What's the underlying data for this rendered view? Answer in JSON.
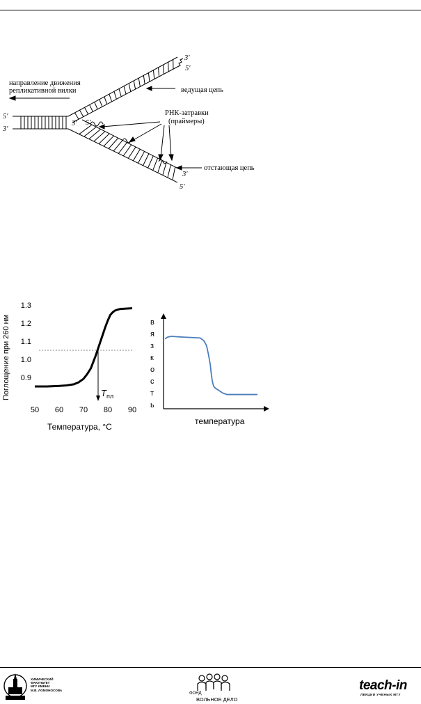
{
  "replication_fork": {
    "labels": {
      "direction": [
        "направление движения",
        "репликативной вилки"
      ],
      "leading": "ведущая цепь",
      "primers": [
        "РНК-затравки",
        "(праймеры)"
      ],
      "lagging": "отстающая цепь",
      "end_3_top": "3′",
      "end_5_top": "5′",
      "end_5_left": "5′",
      "end_3_left": "3′",
      "end_3_fork": "3′",
      "end_5_fork": "5′",
      "end_3_bottom": "3′",
      "end_5_bottom": "5′"
    }
  },
  "chart_data": [
    {
      "type": "line",
      "xlabel": "Температура, °C",
      "ylabel": "Поглощение при 260 нм",
      "xlim": [
        50,
        90
      ],
      "ylim": [
        0.8,
        1.3
      ],
      "xticks": [
        "50",
        "60",
        "70",
        "80",
        "90"
      ],
      "yticks": [
        "1.3",
        "1.2",
        "1.1",
        "1.0",
        "0.9"
      ],
      "x": [
        50,
        55,
        60,
        63,
        66,
        68,
        70,
        71.5,
        73,
        74,
        75,
        76,
        77,
        78,
        79,
        80,
        81,
        82,
        83,
        85,
        87,
        90
      ],
      "y": [
        0.85,
        0.85,
        0.853,
        0.856,
        0.862,
        0.873,
        0.892,
        0.918,
        0.95,
        0.985,
        1.02,
        1.06,
        1.1,
        1.14,
        1.18,
        1.215,
        1.245,
        1.26,
        1.27,
        1.278,
        1.28,
        1.282
      ],
      "reference_line_y": 1.05,
      "marker_x": 76,
      "marker_label": "T",
      "marker_sub": "пл",
      "grid": false
    },
    {
      "type": "line",
      "xlabel": "температура",
      "ylabel_letters": [
        "в",
        "я",
        "з",
        "к",
        "о",
        "с",
        "т",
        "ь"
      ],
      "line_color": "#4a7ebb",
      "x": [
        0,
        3,
        7,
        12,
        20,
        30,
        38,
        42,
        45,
        47,
        49,
        50,
        51,
        52,
        53,
        55,
        58,
        62,
        67,
        75,
        85,
        100
      ],
      "y": [
        0.8,
        0.82,
        0.83,
        0.825,
        0.82,
        0.815,
        0.81,
        0.78,
        0.72,
        0.62,
        0.5,
        0.4,
        0.32,
        0.27,
        0.24,
        0.22,
        0.2,
        0.17,
        0.15,
        0.15,
        0.15,
        0.15
      ]
    }
  ],
  "footer": {
    "left_caption": [
      "ХИМИЧЕСКИЙ",
      "ФАКУЛЬТЕТ",
      "МГУ ИМЕНИ",
      "М.В. ЛОМОНОСОВА"
    ],
    "mid_caption_fond": "ФОНД",
    "mid_caption_name": "ВОЛЬНОЕ ДЕЛО",
    "right_brand": "teach-in",
    "right_sub": "ЛЕКЦИИ УЧЕНЫХ МГУ"
  }
}
